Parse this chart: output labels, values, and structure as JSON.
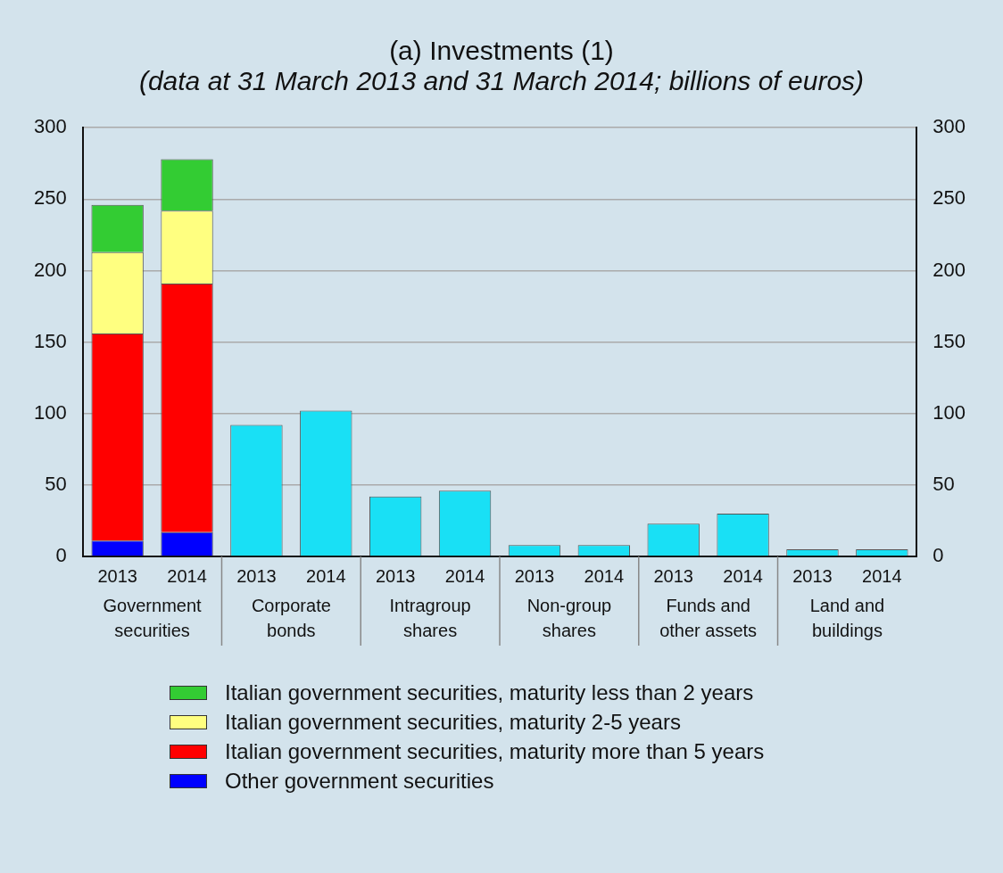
{
  "chart_data": {
    "type": "bar",
    "title": "(a) Investments (1)",
    "subtitle": "(data at 31 March 2013 and 31 March 2014; billions of euros)",
    "categories": [
      "2013",
      "2014",
      "2013",
      "2014",
      "2013",
      "2014",
      "2013",
      "2014",
      "2013",
      "2014",
      "2013",
      "2014"
    ],
    "annotations": [
      "Government securities",
      "Corporate bonds",
      "Intragroup shares",
      "Non-group shares",
      "Funds and other assets",
      "Land and buildings"
    ],
    "stacked": true,
    "series": [
      {
        "name": "Other government securities",
        "color": "#0000ff",
        "values": [
          11,
          17,
          null,
          null,
          null,
          null,
          null,
          null,
          null,
          null,
          null,
          null
        ]
      },
      {
        "name": "Italian government securities, maturity more than 5 years",
        "color": "#ff0000",
        "values": [
          145,
          174,
          null,
          null,
          null,
          null,
          null,
          null,
          null,
          null,
          null,
          null
        ]
      },
      {
        "name": "Italian government securities, maturity 2-5 years",
        "color": "#ffff80",
        "values": [
          57,
          51,
          null,
          null,
          null,
          null,
          null,
          null,
          null,
          null,
          null,
          null
        ]
      },
      {
        "name": "Italian government securities, maturity less than 2 years",
        "color": "#33cc33",
        "values": [
          33,
          36,
          null,
          null,
          null,
          null,
          null,
          null,
          null,
          null,
          null,
          null
        ]
      },
      {
        "color": "#19e0f5",
        "values": [
          null,
          null,
          92,
          102,
          42,
          46,
          8,
          8,
          23,
          30,
          5,
          5
        ]
      }
    ],
    "ylim": [
      0,
      300
    ],
    "yticks": [
      0,
      50,
      100,
      150,
      200,
      250,
      300
    ],
    "y2lim": [
      0,
      300
    ],
    "y2ticks": [
      0,
      50,
      100,
      150,
      200,
      250,
      300
    ],
    "grid": "y",
    "legend": "bottom"
  }
}
